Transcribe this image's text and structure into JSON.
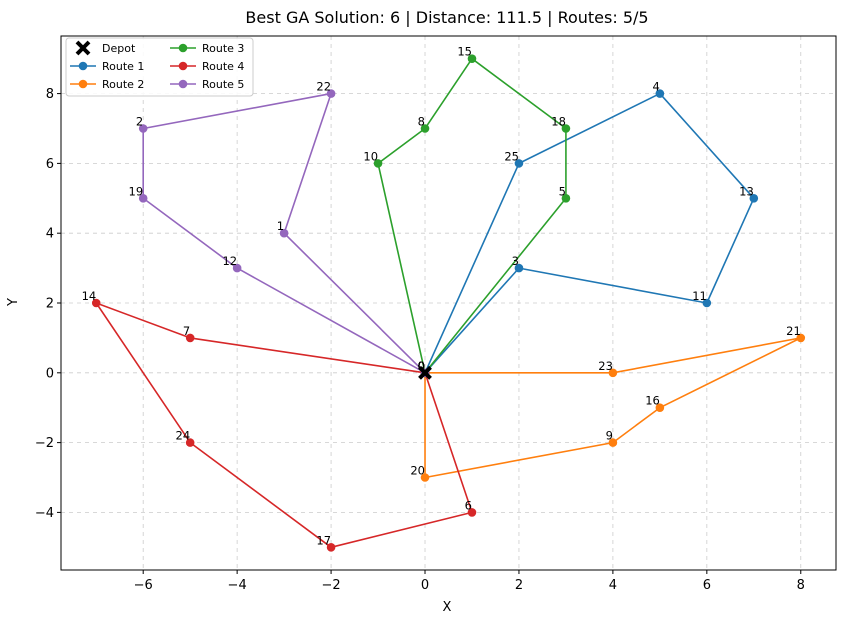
{
  "chart_data": {
    "type": "line",
    "title": "Best GA Solution: 6 | Distance: 111.5 | Routes: 5/5",
    "xlabel": "X",
    "ylabel": "Y",
    "xlim": [
      -7.75,
      8.75
    ],
    "ylim": [
      -5.65,
      9.65
    ],
    "xticks": [
      -6,
      -4,
      -2,
      0,
      2,
      4,
      6,
      8
    ],
    "yticks": [
      -4,
      -2,
      0,
      2,
      4,
      6,
      8
    ],
    "xtick_labels": [
      "−6",
      "−4",
      "−2",
      "0",
      "2",
      "4",
      "6",
      "8"
    ],
    "ytick_labels": [
      "−4",
      "−2",
      "0",
      "2",
      "4",
      "6",
      "8"
    ],
    "grid": true,
    "legend_position": "top-left",
    "depot": {
      "name": "Depot",
      "x": 0,
      "y": 0
    },
    "series": [
      {
        "name": "Route 1",
        "color": "#1f77b4",
        "stops": [
          {
            "id": "0",
            "x": 0,
            "y": 0
          },
          {
            "id": "3",
            "x": 2,
            "y": 3
          },
          {
            "id": "11",
            "x": 6,
            "y": 2
          },
          {
            "id": "13",
            "x": 7,
            "y": 5
          },
          {
            "id": "4",
            "x": 5,
            "y": 8
          },
          {
            "id": "25",
            "x": 2,
            "y": 6
          },
          {
            "id": "0",
            "x": 0,
            "y": 0
          }
        ]
      },
      {
        "name": "Route 2",
        "color": "#ff7f0e",
        "stops": [
          {
            "id": "0",
            "x": 0,
            "y": 0
          },
          {
            "id": "23",
            "x": 4,
            "y": 0
          },
          {
            "id": "21",
            "x": 8,
            "y": 1
          },
          {
            "id": "16",
            "x": 5,
            "y": -1
          },
          {
            "id": "9",
            "x": 4,
            "y": -2
          },
          {
            "id": "20",
            "x": 0,
            "y": -3
          },
          {
            "id": "0",
            "x": 0,
            "y": 0
          }
        ]
      },
      {
        "name": "Route 3",
        "color": "#2ca02c",
        "stops": [
          {
            "id": "0",
            "x": 0,
            "y": 0
          },
          {
            "id": "10",
            "x": -1,
            "y": 6
          },
          {
            "id": "8",
            "x": 0,
            "y": 7
          },
          {
            "id": "15",
            "x": 1,
            "y": 9
          },
          {
            "id": "18",
            "x": 3,
            "y": 7
          },
          {
            "id": "5",
            "x": 3,
            "y": 5
          },
          {
            "id": "0",
            "x": 0,
            "y": 0
          }
        ]
      },
      {
        "name": "Route 4",
        "color": "#d62728",
        "stops": [
          {
            "id": "0",
            "x": 0,
            "y": 0
          },
          {
            "id": "7",
            "x": -5,
            "y": 1
          },
          {
            "id": "14",
            "x": -7,
            "y": 2
          },
          {
            "id": "24",
            "x": -5,
            "y": -2
          },
          {
            "id": "17",
            "x": -2,
            "y": -5
          },
          {
            "id": "6",
            "x": 1,
            "y": -4
          },
          {
            "id": "0",
            "x": 0,
            "y": 0
          }
        ]
      },
      {
        "name": "Route 5",
        "color": "#9467bd",
        "stops": [
          {
            "id": "0",
            "x": 0,
            "y": 0
          },
          {
            "id": "12",
            "x": -4,
            "y": 3
          },
          {
            "id": "19",
            "x": -6,
            "y": 5
          },
          {
            "id": "2",
            "x": -6,
            "y": 7
          },
          {
            "id": "22",
            "x": -2,
            "y": 8
          },
          {
            "id": "1",
            "x": -3,
            "y": 4
          },
          {
            "id": "0",
            "x": 0,
            "y": 0
          }
        ]
      }
    ]
  }
}
